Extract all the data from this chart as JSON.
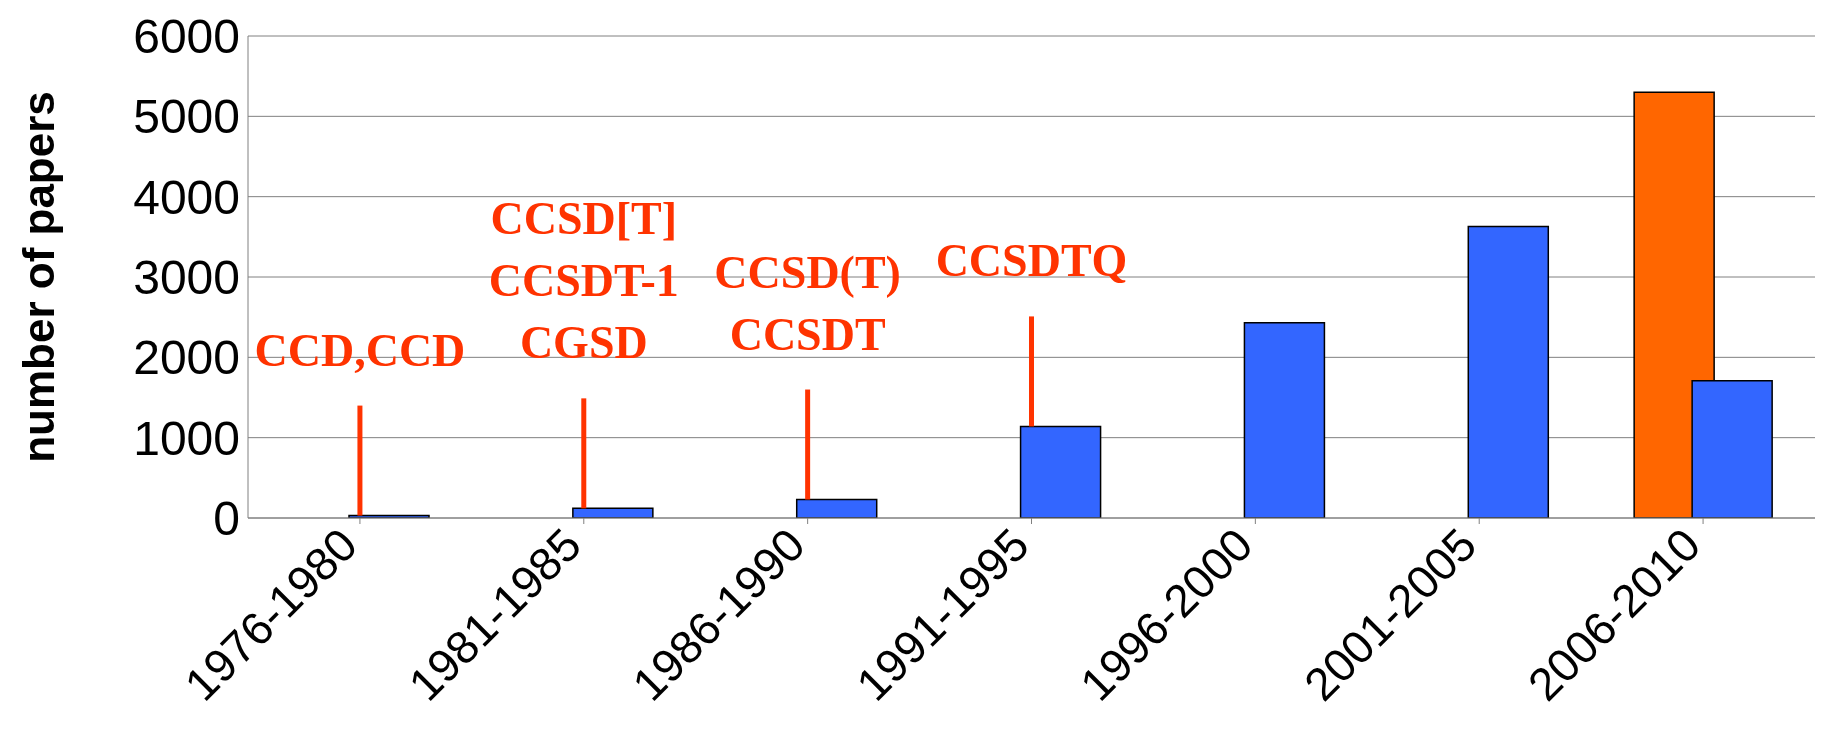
{
  "chart_data": {
    "type": "bar",
    "ylabel": "number of papers",
    "categories": [
      "1976-1980",
      "1981-1985",
      "1986-1990",
      "1991-1995",
      "1996-2000",
      "2001-2005",
      "2006-2010"
    ],
    "series": [
      {
        "color": "#ff6600",
        "values": [
          null,
          null,
          null,
          null,
          null,
          null,
          5300
        ]
      },
      {
        "color": "#3366ff",
        "values": [
          30,
          120,
          230,
          1140,
          2430,
          3630,
          1710
        ]
      }
    ],
    "ylim": [
      0,
      6000
    ],
    "yticks": [
      0,
      1000,
      2000,
      3000,
      4000,
      5000,
      6000
    ],
    "grid": "y",
    "annotations": [
      {
        "text": "CCD,CCD",
        "x": "1976-1980",
        "y": 30
      },
      "CCSD[T]",
      "CCSDT-1",
      {
        "text": "CGSD",
        "x": "1981-1985",
        "y": 120
      },
      "CCSD(T)",
      {
        "text": "CCSDT",
        "x": "1986-1990",
        "y": 230
      },
      {
        "text": "CCSDTQ",
        "x": "1991-1995",
        "y": 1140
      }
    ]
  }
}
